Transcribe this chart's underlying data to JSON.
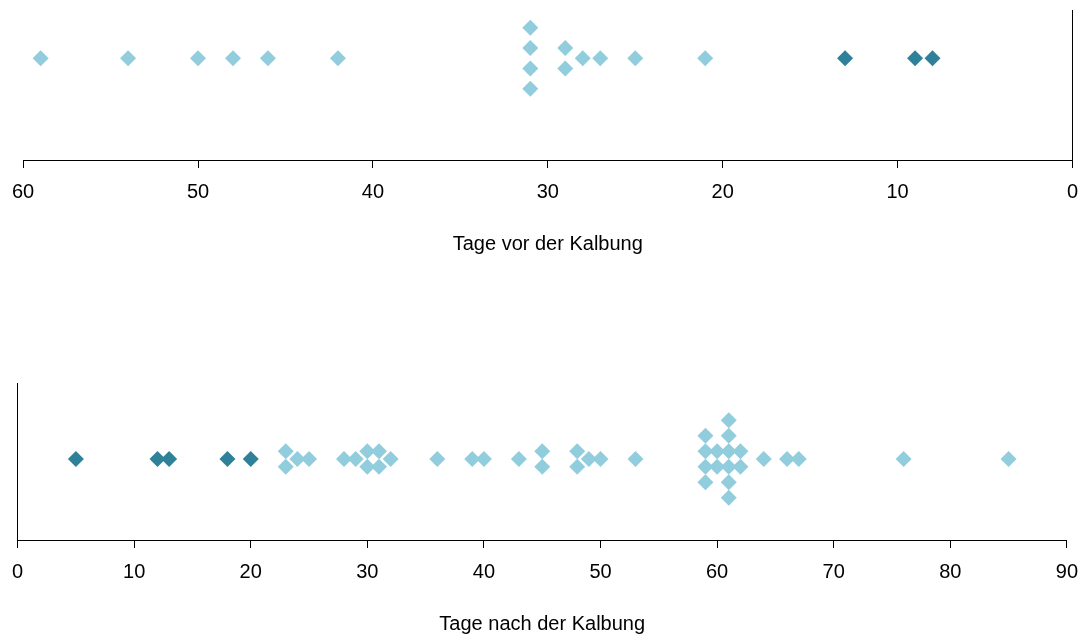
{
  "chart_data": [
    {
      "type": "scatter",
      "orientation": "horizontal",
      "categories": [
        null
      ],
      "xlabel": "Tage vor der Kalbung",
      "xlim": [
        60,
        0
      ],
      "xticks": [
        60,
        50,
        40,
        30,
        20,
        10,
        0
      ],
      "marker": "diamond",
      "grid": false,
      "legend": false,
      "series": [
        {
          "color": "#92cddd",
          "values": [
            59
          ]
        },
        {
          "color": "#92cddd",
          "values": [
            54
          ]
        },
        {
          "color": "#92cddd",
          "values": [
            50
          ]
        },
        {
          "color": "#92cddd",
          "values": [
            48
          ]
        },
        {
          "color": "#92cddd",
          "values": [
            46
          ]
        },
        {
          "color": "#92cddd",
          "values": [
            42
          ]
        },
        {
          "color": "#92cddd",
          "values": [
            31
          ]
        },
        {
          "color": "#92cddd",
          "values": [
            31
          ]
        },
        {
          "color": "#92cddd",
          "values": [
            31
          ]
        },
        {
          "color": "#92cddd",
          "values": [
            31
          ]
        },
        {
          "color": "#92cddd",
          "values": [
            29
          ]
        },
        {
          "color": "#92cddd",
          "values": [
            29
          ]
        },
        {
          "color": "#92cddd",
          "values": [
            28
          ]
        },
        {
          "color": "#92cddd",
          "values": [
            27
          ]
        },
        {
          "color": "#92cddd",
          "values": [
            25
          ]
        },
        {
          "color": "#92cddd",
          "values": [
            21
          ]
        },
        {
          "color": "#2e8199",
          "values": [
            13
          ]
        },
        {
          "color": "#2e8199",
          "values": [
            9
          ]
        },
        {
          "color": "#2e8199",
          "values": [
            8
          ]
        }
      ]
    },
    {
      "type": "scatter",
      "orientation": "horizontal",
      "categories": [
        null
      ],
      "xlabel": "Tage nach der Kalbung",
      "xlim": [
        0,
        90
      ],
      "xticks": [
        0,
        10,
        20,
        30,
        40,
        50,
        60,
        70,
        80,
        90
      ],
      "marker": "diamond",
      "grid": false,
      "legend": false,
      "series": [
        {
          "color": "#2e8199",
          "values": [
            5
          ]
        },
        {
          "color": "#2e8199",
          "values": [
            12
          ]
        },
        {
          "color": "#2e8199",
          "values": [
            13
          ]
        },
        {
          "color": "#2e8199",
          "values": [
            18
          ]
        },
        {
          "color": "#2e8199",
          "values": [
            20
          ]
        },
        {
          "color": "#92cddd",
          "values": [
            23
          ]
        },
        {
          "color": "#92cddd",
          "values": [
            23
          ]
        },
        {
          "color": "#92cddd",
          "values": [
            24
          ]
        },
        {
          "color": "#92cddd",
          "values": [
            25
          ]
        },
        {
          "color": "#92cddd",
          "values": [
            28
          ]
        },
        {
          "color": "#92cddd",
          "values": [
            29
          ]
        },
        {
          "color": "#92cddd",
          "values": [
            30
          ]
        },
        {
          "color": "#92cddd",
          "values": [
            30
          ]
        },
        {
          "color": "#92cddd",
          "values": [
            31
          ]
        },
        {
          "color": "#92cddd",
          "values": [
            31
          ]
        },
        {
          "color": "#92cddd",
          "values": [
            32
          ]
        },
        {
          "color": "#92cddd",
          "values": [
            36
          ]
        },
        {
          "color": "#92cddd",
          "values": [
            39
          ]
        },
        {
          "color": "#92cddd",
          "values": [
            40
          ]
        },
        {
          "color": "#92cddd",
          "values": [
            43
          ]
        },
        {
          "color": "#92cddd",
          "values": [
            45
          ]
        },
        {
          "color": "#92cddd",
          "values": [
            45
          ]
        },
        {
          "color": "#92cddd",
          "values": [
            48
          ]
        },
        {
          "color": "#92cddd",
          "values": [
            48
          ]
        },
        {
          "color": "#92cddd",
          "values": [
            49
          ]
        },
        {
          "color": "#92cddd",
          "values": [
            50
          ]
        },
        {
          "color": "#92cddd",
          "values": [
            53
          ]
        },
        {
          "color": "#92cddd",
          "values": [
            59
          ]
        },
        {
          "color": "#92cddd",
          "values": [
            59
          ]
        },
        {
          "color": "#92cddd",
          "values": [
            59
          ]
        },
        {
          "color": "#92cddd",
          "values": [
            59
          ]
        },
        {
          "color": "#92cddd",
          "values": [
            60
          ]
        },
        {
          "color": "#92cddd",
          "values": [
            60
          ]
        },
        {
          "color": "#92cddd",
          "values": [
            61
          ]
        },
        {
          "color": "#92cddd",
          "values": [
            61
          ]
        },
        {
          "color": "#92cddd",
          "values": [
            61
          ]
        },
        {
          "color": "#92cddd",
          "values": [
            61
          ]
        },
        {
          "color": "#92cddd",
          "values": [
            61
          ]
        },
        {
          "color": "#92cddd",
          "values": [
            61
          ]
        },
        {
          "color": "#92cddd",
          "values": [
            62
          ]
        },
        {
          "color": "#92cddd",
          "values": [
            62
          ]
        },
        {
          "color": "#92cddd",
          "values": [
            64
          ]
        },
        {
          "color": "#92cddd",
          "values": [
            66
          ]
        },
        {
          "color": "#92cddd",
          "values": [
            67
          ]
        },
        {
          "color": "#92cddd",
          "values": [
            76
          ]
        },
        {
          "color": "#92cddd",
          "values": [
            85
          ]
        }
      ]
    }
  ]
}
